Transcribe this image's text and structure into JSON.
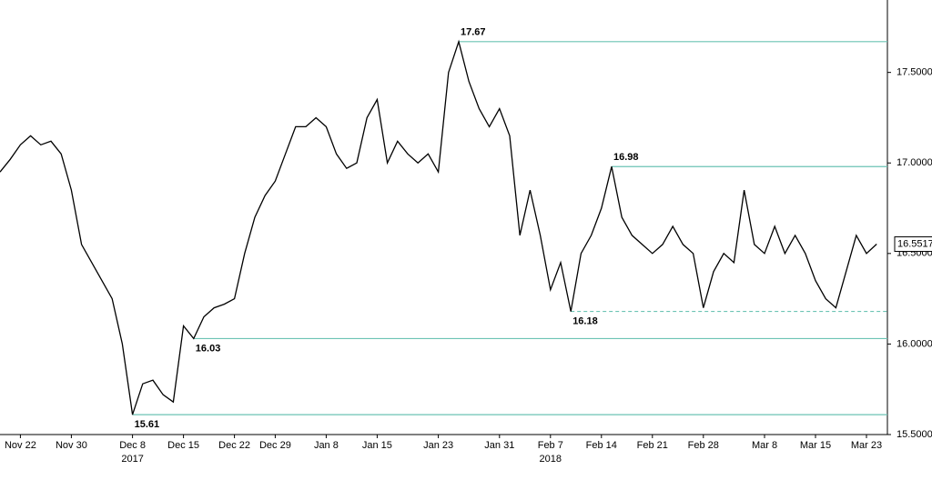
{
  "chart_data": {
    "type": "line",
    "categories": [
      null,
      null,
      "Nov 22",
      null,
      null,
      null,
      null,
      "Nov 30",
      null,
      null,
      null,
      null,
      null,
      "Dec 8",
      null,
      null,
      null,
      null,
      "Dec 15",
      null,
      null,
      null,
      null,
      "Dec 22",
      null,
      null,
      null,
      "Dec 29",
      null,
      null,
      null,
      null,
      "Jan 8",
      null,
      null,
      null,
      null,
      "Jan 15",
      null,
      null,
      null,
      null,
      null,
      "Jan 23",
      null,
      null,
      null,
      null,
      null,
      "Jan 31",
      null,
      null,
      null,
      null,
      "Feb 7",
      null,
      null,
      null,
      null,
      "Feb 14",
      null,
      null,
      null,
      null,
      "Feb 21",
      null,
      null,
      null,
      null,
      "Feb 28",
      null,
      null,
      null,
      null,
      null,
      "Mar 8",
      null,
      null,
      null,
      null,
      "Mar 15",
      null,
      null,
      null,
      null,
      "Mar 23",
      null
    ],
    "values": [
      16.95,
      17.02,
      17.1,
      17.15,
      17.1,
      17.12,
      17.05,
      16.85,
      16.55,
      16.45,
      16.35,
      16.25,
      16.0,
      15.61,
      15.78,
      15.8,
      15.72,
      15.68,
      16.1,
      16.03,
      16.15,
      16.2,
      16.22,
      16.25,
      16.5,
      16.7,
      16.82,
      16.9,
      17.05,
      17.2,
      17.2,
      17.25,
      17.2,
      17.05,
      16.97,
      17.0,
      17.25,
      17.35,
      17.0,
      17.12,
      17.05,
      17.0,
      17.05,
      16.95,
      17.5,
      17.67,
      17.45,
      17.3,
      17.2,
      17.3,
      17.15,
      16.6,
      16.85,
      16.6,
      16.3,
      16.45,
      16.18,
      16.5,
      16.6,
      16.75,
      16.98,
      16.7,
      16.6,
      16.55,
      16.5,
      16.55,
      16.65,
      16.55,
      16.5,
      16.2,
      16.4,
      16.5,
      16.45,
      16.85,
      16.55,
      16.5,
      16.65,
      16.5,
      16.6,
      16.5,
      16.35,
      16.25,
      16.2,
      16.4,
      16.6,
      16.5,
      16.5517
    ],
    "color": "#000000",
    "ylim": [
      15.5,
      17.9
    ],
    "yticks": [
      {
        "value": 15.5,
        "label": "15.5000"
      },
      {
        "value": 16.0,
        "label": "16.0000"
      },
      {
        "value": 16.5,
        "label": "16.5000"
      },
      {
        "value": 17.0,
        "label": "17.0000"
      },
      {
        "value": 17.5,
        "label": "17.5000"
      }
    ],
    "year_labels": [
      {
        "text": "2017",
        "category": "Dec 8"
      },
      {
        "text": "2018",
        "category": "Feb 7"
      }
    ],
    "reference_lines": [
      {
        "value": 17.67,
        "label": "17.67",
        "style": "solid",
        "label_position": "above"
      },
      {
        "value": 16.98,
        "label": "16.98",
        "style": "solid",
        "label_position": "above"
      },
      {
        "value": 16.03,
        "label": "16.03",
        "style": "solid",
        "label_position": "below"
      },
      {
        "value": 15.61,
        "label": "15.61",
        "style": "solid",
        "label_position": "below"
      },
      {
        "value": 16.18,
        "label": "16.18",
        "style": "dashed",
        "label_position": "below"
      }
    ],
    "reference_color": "#6cc3b4"
  }
}
